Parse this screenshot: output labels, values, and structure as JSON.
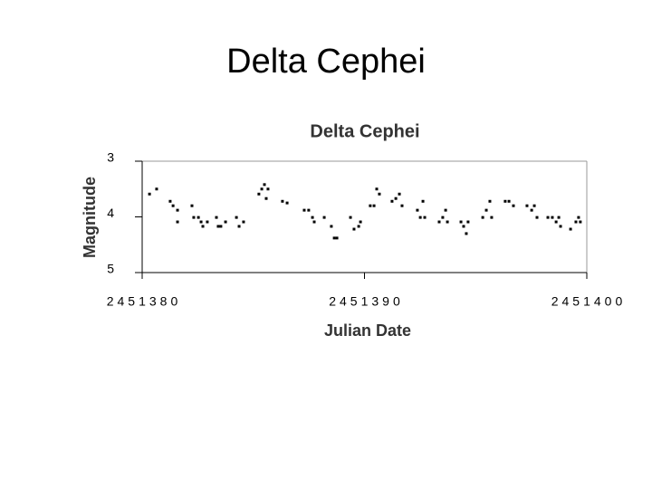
{
  "slide_title": "Delta Cephei",
  "chart_data": {
    "type": "scatter",
    "title": "Delta Cephei",
    "x_label": "Julian Date",
    "y_label": "Magnitude",
    "xlim": [
      2451380,
      2451400
    ],
    "xticks": [
      2451380,
      2451390,
      2451400
    ],
    "ylim": [
      3,
      5
    ],
    "yticks": [
      3,
      4,
      5
    ],
    "y_inverted": true,
    "grid": false,
    "color": "#000000",
    "x": [
      2451380.33,
      2451380.65,
      2451381.26,
      2451381.39,
      2451381.59,
      2451381.59,
      2451382.24,
      2451382.32,
      2451382.53,
      2451382.65,
      2451382.73,
      2451382.93,
      2451383.34,
      2451383.42,
      2451383.54,
      2451383.75,
      2451384.24,
      2451384.36,
      2451384.56,
      2451385.25,
      2451385.38,
      2451385.5,
      2451385.58,
      2451385.66,
      2451386.31,
      2451386.52,
      2451387.29,
      2451387.49,
      2451387.66,
      2451387.74,
      2451388.19,
      2451388.51,
      2451388.64,
      2451388.76,
      2451389.37,
      2451389.53,
      2451389.74,
      2451389.82,
      2451390.26,
      2451390.43,
      2451390.55,
      2451390.67,
      2451391.24,
      2451391.41,
      2451391.57,
      2451391.69,
      2451392.38,
      2451392.51,
      2451392.63,
      2451392.71,
      2451393.36,
      2451393.52,
      2451393.65,
      2451393.73,
      2451394.34,
      2451394.46,
      2451394.58,
      2451394.66,
      2451395.32,
      2451395.48,
      2451395.64,
      2451395.72,
      2451396.33,
      2451396.5,
      2451396.7,
      2451397.31,
      2451397.52,
      2451397.64,
      2451397.76,
      2451398.25,
      2451398.45,
      2451398.62,
      2451398.74,
      2451398.82,
      2451399.27,
      2451399.51,
      2451399.63,
      2451399.71
    ],
    "values": [
      3.59,
      3.5,
      3.72,
      3.8,
      3.88,
      4.09,
      3.8,
      4.01,
      4.01,
      4.09,
      4.17,
      4.09,
      4.01,
      4.17,
      4.17,
      4.09,
      4.01,
      4.17,
      4.09,
      3.59,
      3.5,
      3.42,
      3.67,
      3.5,
      3.72,
      3.75,
      3.88,
      3.88,
      4.01,
      4.09,
      4.01,
      4.17,
      4.38,
      4.38,
      4.01,
      4.22,
      4.17,
      4.09,
      3.8,
      3.8,
      3.5,
      3.59,
      3.72,
      3.67,
      3.59,
      3.8,
      3.88,
      4.01,
      3.72,
      4.01,
      4.09,
      4.01,
      3.88,
      4.09,
      4.09,
      4.17,
      4.3,
      4.09,
      4.01,
      3.88,
      3.72,
      4.01,
      3.72,
      3.72,
      3.8,
      3.8,
      3.88,
      3.8,
      4.01,
      4.01,
      4.01,
      4.09,
      4.01,
      4.17,
      4.22,
      4.09,
      4.01,
      4.09
    ]
  }
}
